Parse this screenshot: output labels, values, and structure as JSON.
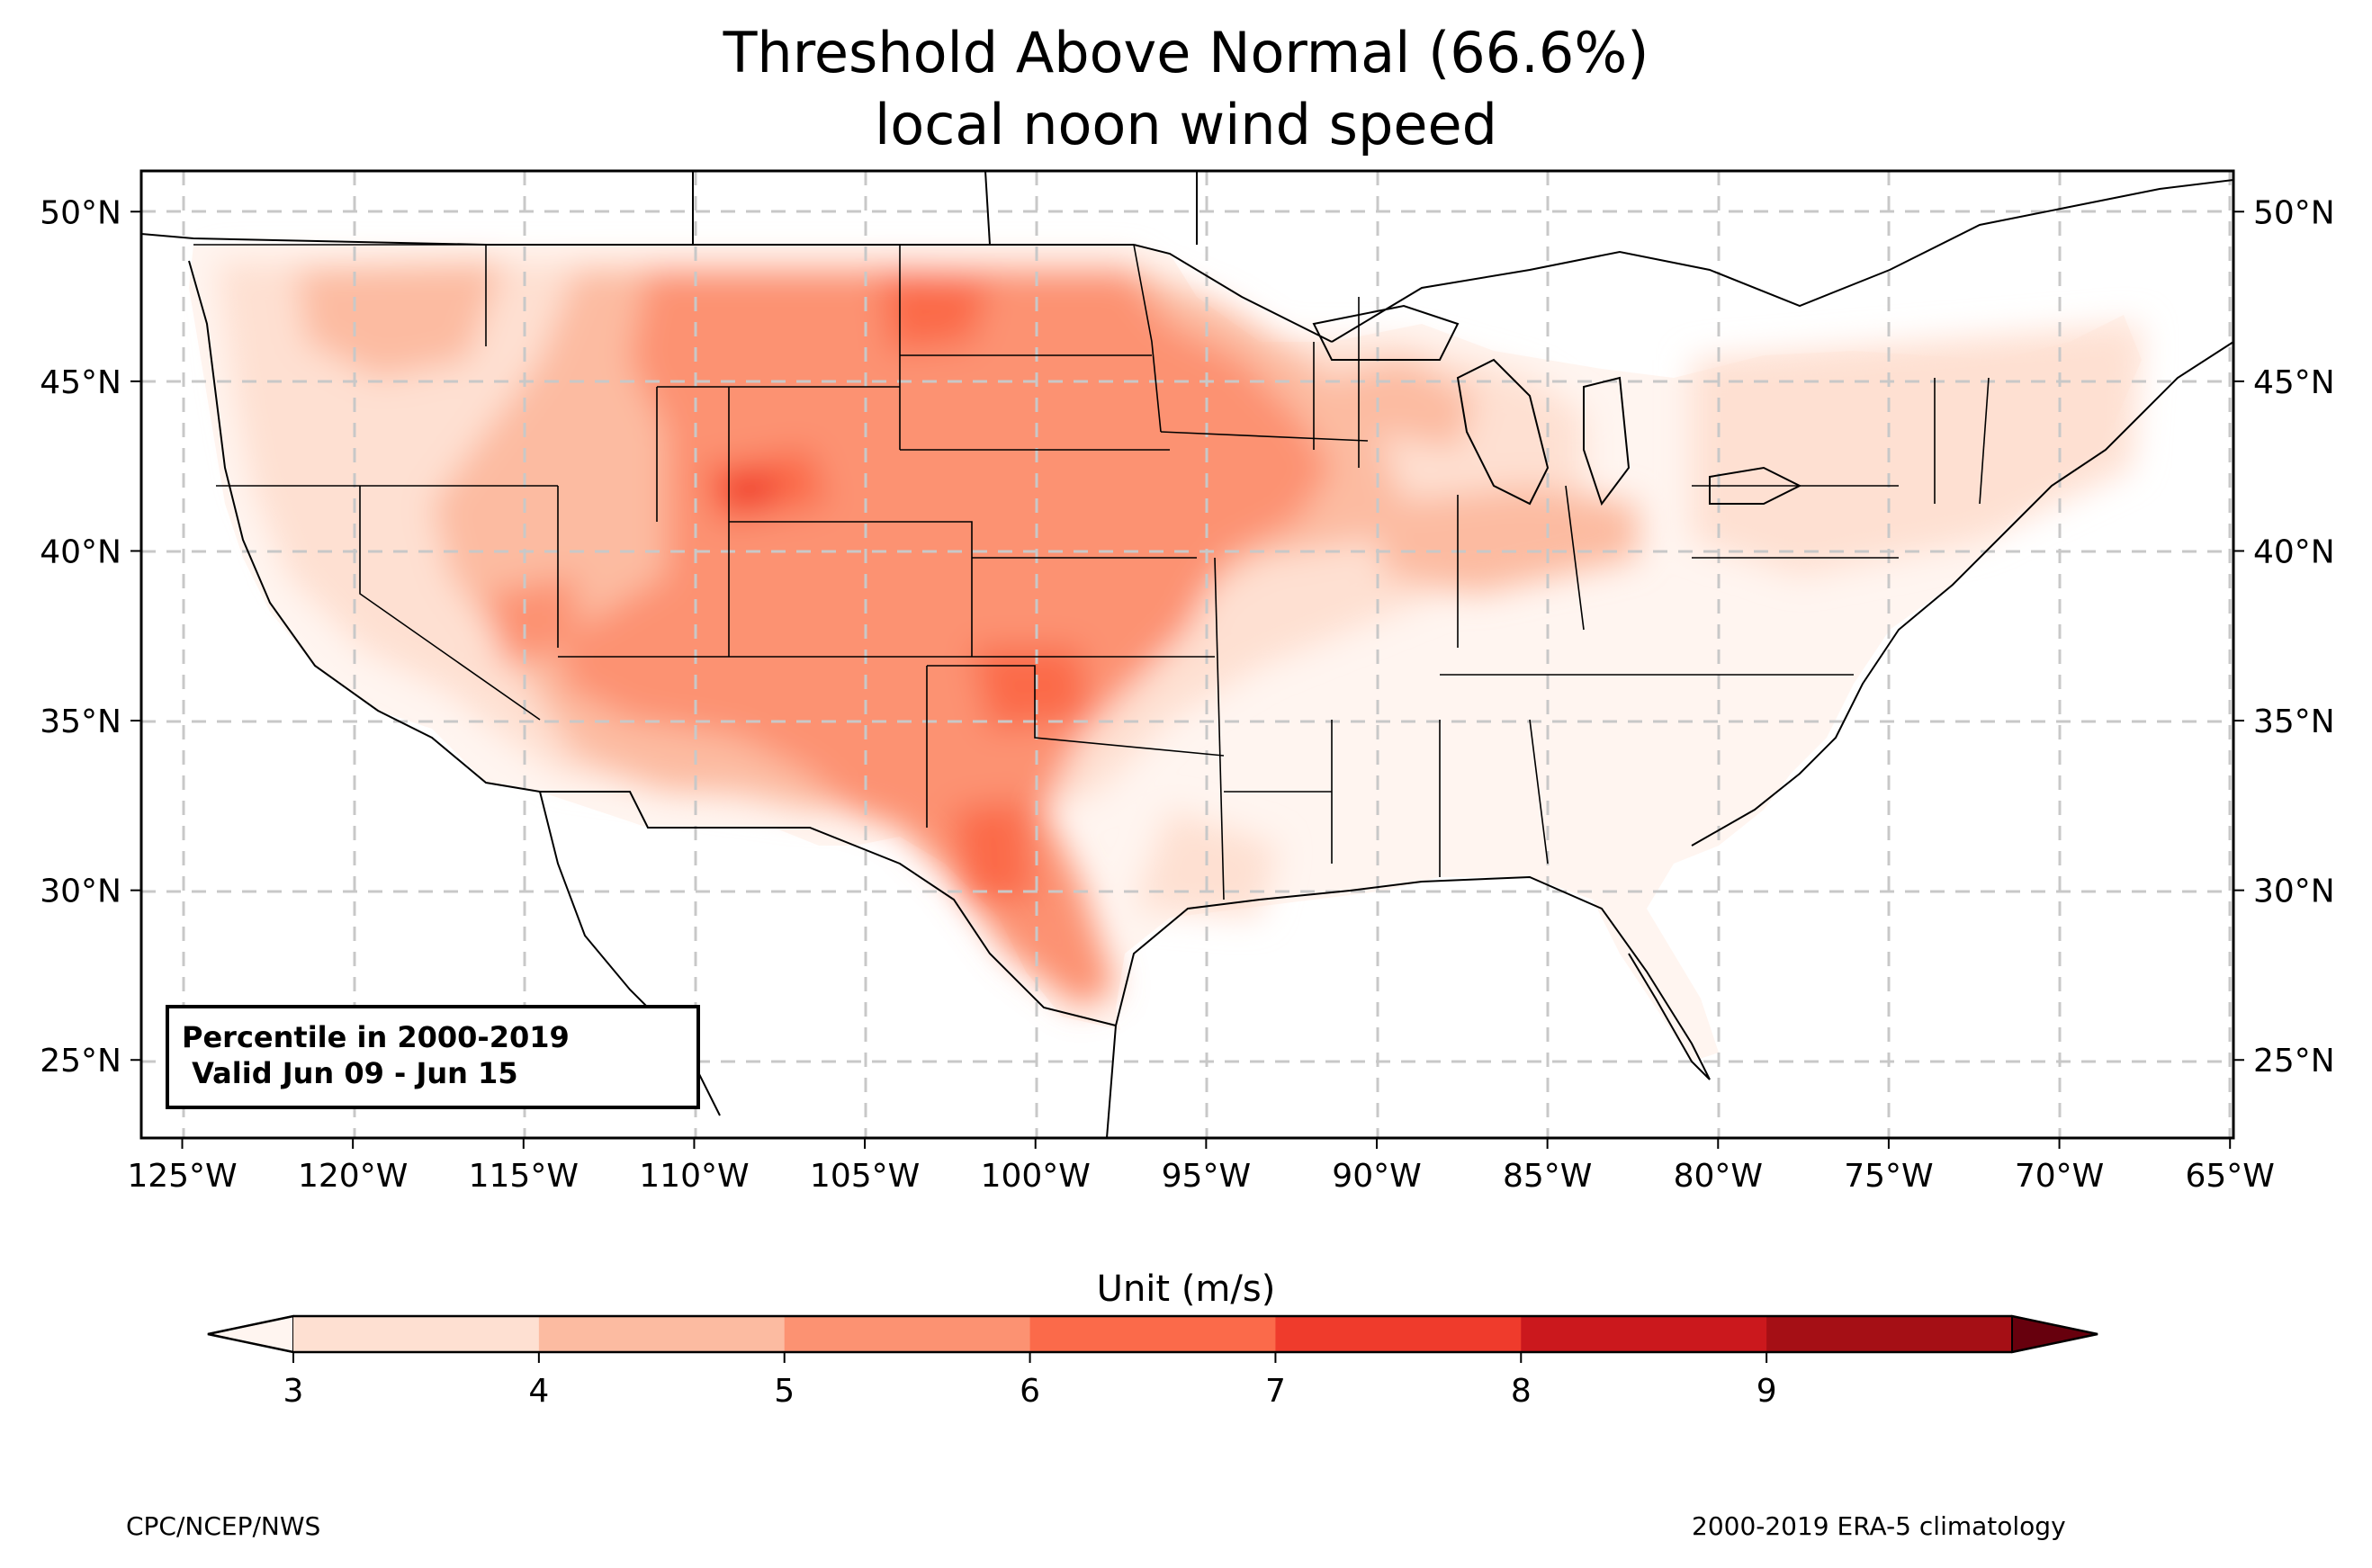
{
  "title_line1": "Threshold Above Normal (66.6%)",
  "title_line2": "local noon wind speed",
  "info_box": {
    "line1": "Percentile in 2000-2019",
    "line2": " Valid Jun 09 - Jun 15"
  },
  "axes": {
    "lon_labels": [
      "125°W",
      "120°W",
      "115°W",
      "110°W",
      "105°W",
      "100°W",
      "95°W",
      "90°W",
      "85°W",
      "80°W",
      "75°W",
      "70°W",
      "65°W"
    ],
    "lon_values": [
      -125,
      -120,
      -115,
      -110,
      -105,
      -100,
      -95,
      -90,
      -85,
      -80,
      -75,
      -70,
      -65
    ],
    "lat_labels": [
      "50°N",
      "45°N",
      "40°N",
      "35°N",
      "30°N",
      "25°N"
    ],
    "lat_values": [
      50,
      45,
      40,
      35,
      30,
      25
    ],
    "lon_range": [
      -126.2,
      -64.9
    ],
    "lat_range": [
      22.7,
      51.2
    ],
    "gridlines": "dashed"
  },
  "colorbar": {
    "title": "Unit (m/s)",
    "ticks": [
      "3",
      "4",
      "5",
      "6",
      "7",
      "8",
      "9"
    ],
    "colors": [
      "#fee0d2",
      "#fcbba1",
      "#fc9272",
      "#fb6a4a",
      "#ef3b2c",
      "#cb181d",
      "#a50f15"
    ],
    "under_color": "#fff5f0",
    "over_color": "#67000d",
    "extend": "both"
  },
  "footer_left": "CPC/NCEP/NWS",
  "footer_right": "2000-2019 ERA-5 climatology"
}
